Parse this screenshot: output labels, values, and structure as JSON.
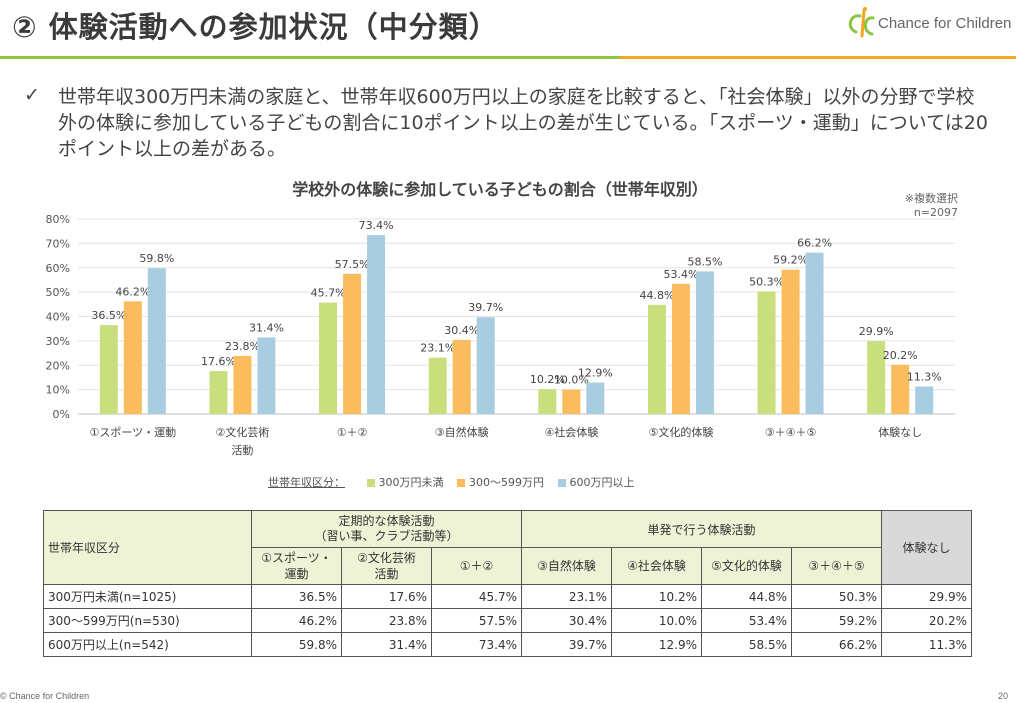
{
  "header": {
    "title": "② 体験活動への参加状況（中分類）",
    "logo_text": "Chance for Children"
  },
  "bullet": {
    "check": "✓",
    "text": "世帯年収300万円未満の家庭と、世帯年収600万円以上の家庭を比較すると、「社会体験」以外の分野で学校外の体験に参加している子どもの割合に10ポイント以上の差が生じている。「スポーツ・運動」については20ポイント以上の差がある。"
  },
  "note": {
    "line1": "※複数選択",
    "line2": "n=2097"
  },
  "chart_data": {
    "type": "bar",
    "title": "学校外の体験に参加している子どもの割合（世帯年収別）",
    "categories": [
      [
        "①スポーツ・運動"
      ],
      [
        "②文化芸術",
        "活動"
      ],
      [
        "①＋②"
      ],
      [
        "③自然体験"
      ],
      [
        "④社会体験"
      ],
      [
        "⑤文化的体験"
      ],
      [
        "③＋④＋⑤"
      ],
      [
        "体験なし"
      ]
    ],
    "yticks": [
      "0%",
      "10%",
      "20%",
      "30%",
      "40%",
      "50%",
      "60%",
      "70%",
      "80%"
    ],
    "ylim": [
      0,
      80
    ],
    "grid": true,
    "legend_title": "世帯年収区分：",
    "legend_position": "bottom",
    "series": [
      {
        "name": "300万円未満",
        "color": "#c9df7e",
        "values": [
          36.5,
          17.6,
          45.7,
          23.1,
          10.2,
          44.8,
          50.3,
          29.9
        ],
        "labels": [
          "36.5%",
          "17.6%",
          "45.7%",
          "23.1%",
          "10.2%",
          "44.8%",
          "50.3%",
          "29.9%"
        ]
      },
      {
        "name": "300～599万円",
        "color": "#fbbc5e",
        "values": [
          46.2,
          23.8,
          57.5,
          30.4,
          10.0,
          53.4,
          59.2,
          20.2
        ],
        "labels": [
          "46.2%",
          "23.8%",
          "57.5%",
          "30.4%",
          "10.0%",
          "53.4%",
          "59.2%",
          "20.2%"
        ]
      },
      {
        "name": "600万円以上",
        "color": "#a9cde0",
        "values": [
          59.8,
          31.4,
          73.4,
          39.7,
          12.9,
          58.5,
          66.2,
          11.3
        ],
        "labels": [
          "59.8%",
          "31.4%",
          "73.4%",
          "39.7%",
          "12.9%",
          "58.5%",
          "66.2%",
          "11.3%"
        ]
      }
    ]
  },
  "table": {
    "corner": "世帯年収区分",
    "group1_line1": "定期的な体験活動",
    "group1_line2": "（習い事、クラブ活動等）",
    "group2": "単発で行う体験活動",
    "group3": "体験なし",
    "subheaders": [
      [
        "①スポーツ・",
        "運動"
      ],
      [
        "②文化芸術",
        "活動"
      ],
      [
        "①＋②"
      ],
      [
        "③自然体験"
      ],
      [
        "④社会体験"
      ],
      [
        "⑤文化的体験"
      ],
      [
        "③＋④＋⑤"
      ]
    ],
    "rows": [
      {
        "label": "300万円未満(n=1025)",
        "cells": [
          "36.5%",
          "17.6%",
          "45.7%",
          "23.1%",
          "10.2%",
          "44.8%",
          "50.3%",
          "29.9%"
        ]
      },
      {
        "label": "300～599万円(n=530)",
        "cells": [
          "46.2%",
          "23.8%",
          "57.5%",
          "30.4%",
          "10.0%",
          "53.4%",
          "59.2%",
          "20.2%"
        ]
      },
      {
        "label": "600万円以上(n=542)",
        "cells": [
          "59.8%",
          "31.4%",
          "73.4%",
          "39.7%",
          "12.9%",
          "58.5%",
          "66.2%",
          "11.3%"
        ]
      }
    ]
  },
  "footer": {
    "left": "© Chance for Children",
    "page": "20"
  }
}
